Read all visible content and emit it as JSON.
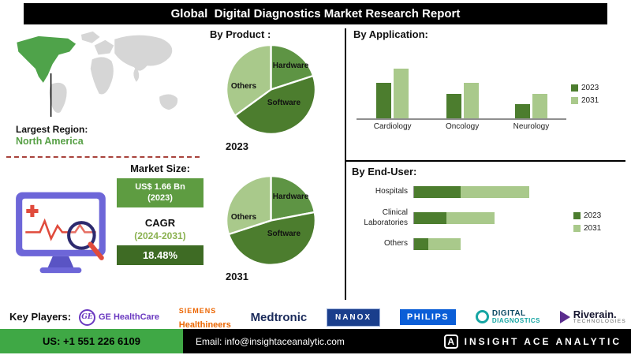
{
  "title": "Global  Digital Diagnostics Market Research Report",
  "colors": {
    "dark_green": "#4C7D2E",
    "light_green": "#A9C98B",
    "hardware_green": "#5E9444",
    "accent_green": "#3FA845",
    "region_green": "#57A046",
    "banner_black": "#000000",
    "ge_purple": "#6A39C0",
    "siemens_orange": "#EC6602",
    "medtronic_navy": "#1B2B5B",
    "nanox_blue": "#1A3E8C",
    "philips_blue": "#0B5ED7",
    "digital_teal": "#16A5A3",
    "riverain_purple": "#5B2D8E"
  },
  "map": {
    "largest_region_label": "Largest Region:",
    "largest_region_value": "North America"
  },
  "market": {
    "size_label": "Market Size:",
    "size_value": "US$ 1.66 Bn",
    "size_year": "(2023)",
    "cagr_label": "CAGR",
    "cagr_period": "(2024-2031)",
    "cagr_value": "18.48%"
  },
  "sections": {
    "by_product": "By Product :",
    "by_application": "By  Application:",
    "by_end_user": "By End-User:"
  },
  "chart_data": [
    {
      "type": "pie",
      "title": "By Product : 2023",
      "year_label": "2023",
      "labels": [
        "Hardware",
        "Software",
        "Others"
      ],
      "values": [
        20,
        45,
        35
      ],
      "colors": [
        "#5E9444",
        "#4C7D2E",
        "#A9C98B"
      ]
    },
    {
      "type": "pie",
      "title": "By Product : 2031",
      "year_label": "2031",
      "labels": [
        "Hardware",
        "Software",
        "Others"
      ],
      "values": [
        22,
        48,
        30
      ],
      "colors": [
        "#5E9444",
        "#4C7D2E",
        "#A9C98B"
      ]
    },
    {
      "type": "bar",
      "title": "By  Application:",
      "categories": [
        "Cardiology",
        "Oncology",
        "Neurology"
      ],
      "series": [
        {
          "name": "2023",
          "color": "#4C7D2E",
          "values": [
            49,
            34,
            20
          ]
        },
        {
          "name": "2031",
          "color": "#A9C98B",
          "values": [
            68,
            49,
            34
          ]
        }
      ],
      "ylim": [
        0,
        100
      ],
      "ylabel": "",
      "xlabel": "",
      "legend_position": "right",
      "note": "values estimated from bar heights, no numeric axis shown"
    },
    {
      "type": "bar",
      "orientation": "horizontal",
      "title": "By End-User:",
      "categories": [
        "Hospitals",
        "Clinical Laboratories",
        "Others"
      ],
      "series": [
        {
          "name": "2023",
          "color": "#4C7D2E",
          "values": [
            30,
            21,
            9
          ]
        },
        {
          "name": "2031",
          "color": "#A9C98B",
          "values": [
            74,
            52,
            30
          ]
        }
      ],
      "xlim": [
        0,
        100
      ],
      "legend_position": "right",
      "note": "values estimated from bar lengths, no numeric axis shown"
    }
  ],
  "key_players": {
    "label": "Key Players:",
    "ge": {
      "monogram": "GE",
      "name": "GE HealthCare"
    },
    "siemens": {
      "line1": "SIEMENS",
      "line2": "Healthineers"
    },
    "medtronic": {
      "name": "Medtronic"
    },
    "nanox": {
      "name": "NANOX"
    },
    "philips": {
      "name": "PHILIPS"
    },
    "digital_diagnostics": {
      "line1": "DIGITAL",
      "line2": "DIAGNOSTICS"
    },
    "riverain": {
      "name": "Riverain.",
      "sub": "TECHNOLOGIES"
    }
  },
  "footer": {
    "phone": "US: +1 551 226 6109",
    "email": "Email: info@insightaceanalytic.com",
    "brand_monogram": "A",
    "brand": "INSIGHT ACE ANALYTIC"
  }
}
